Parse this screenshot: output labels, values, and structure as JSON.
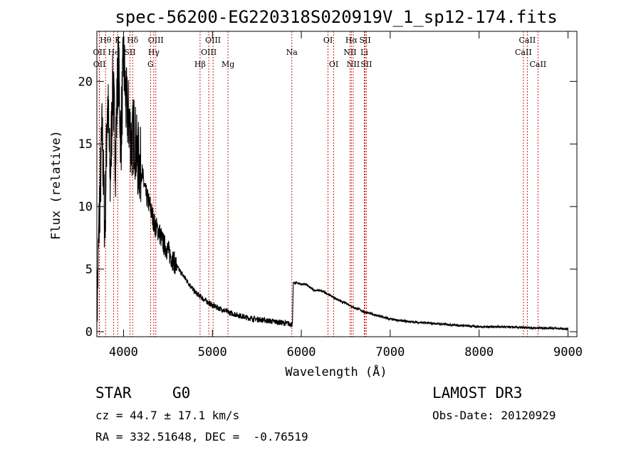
{
  "chart_data": {
    "type": "line",
    "title": "spec-56200-EG220318S020919V_1_sp12-174.fits",
    "xlabel": "Wavelength (Å)",
    "ylabel": "Flux (relative)",
    "xlim": [
      3700,
      9100
    ],
    "ylim": [
      -0.4,
      24
    ],
    "xticks": [
      4000,
      5000,
      6000,
      7000,
      8000,
      9000
    ],
    "yticks": [
      0,
      5,
      10,
      15,
      20
    ],
    "grid": false,
    "line_color": "#000000",
    "marker_color": "#cc0000",
    "series": [
      {
        "x": [
          3700,
          3730,
          3760,
          3790,
          3820,
          3850,
          3880,
          3910,
          3940,
          3970,
          4000,
          4030,
          4060,
          4090,
          4120,
          4150,
          4200,
          4250,
          4300,
          4350,
          4400,
          4450,
          4500,
          4550,
          4600,
          4700,
          4800,
          4900,
          5000,
          5100,
          5200,
          5300,
          5400,
          5500,
          5600,
          5700,
          5800,
          5900,
          5910,
          5920,
          5950,
          6000,
          6050,
          6100,
          6150,
          6200,
          6250,
          6300,
          6350,
          6400,
          6450,
          6500,
          6550,
          6600,
          6650,
          6700,
          6800,
          6900,
          7000,
          7200,
          7400,
          7600,
          7800,
          8000,
          8200,
          8400,
          8600,
          8800,
          9000
        ],
        "y": [
          1.0,
          10.0,
          16.0,
          8.0,
          19.0,
          12.0,
          20.0,
          14.0,
          22.0,
          15.0,
          22.0,
          18.0,
          17.0,
          15.0,
          16.0,
          14.0,
          13.0,
          11.0,
          10.0,
          8.5,
          8.0,
          7.0,
          6.5,
          5.8,
          5.2,
          4.2,
          3.2,
          2.6,
          2.1,
          1.8,
          1.5,
          1.3,
          1.1,
          1.0,
          0.9,
          0.8,
          0.7,
          0.6,
          3.9,
          3.9,
          3.9,
          3.8,
          3.8,
          3.5,
          3.3,
          3.3,
          3.2,
          3.0,
          2.8,
          2.6,
          2.4,
          2.3,
          2.1,
          1.9,
          1.8,
          1.6,
          1.4,
          1.2,
          1.0,
          0.8,
          0.7,
          0.6,
          0.5,
          0.4,
          0.4,
          0.35,
          0.3,
          0.3,
          0.2
        ]
      }
    ],
    "spectral_lines": [
      {
        "label": "Hθ",
        "wavelength": 3798,
        "row": 0
      },
      {
        "label": "K",
        "wavelength": 3934,
        "row": 0
      },
      {
        "label": "Hδ",
        "wavelength": 4102,
        "row": 0
      },
      {
        "label": "OIII",
        "wavelength": 4363,
        "row": 0
      },
      {
        "label": "OIII",
        "wavelength": 5007,
        "row": 0
      },
      {
        "label": "OI",
        "wavelength": 6300,
        "row": 0
      },
      {
        "label": "Hα",
        "wavelength": 6563,
        "row": 0
      },
      {
        "label": "SII",
        "wavelength": 6717,
        "row": 0
      },
      {
        "label": "CaII",
        "wavelength": 8542,
        "row": 0
      },
      {
        "label": "OII",
        "wavelength": 3727,
        "row": 1
      },
      {
        "label": "He",
        "wavelength": 3889,
        "row": 1
      },
      {
        "label": "SII",
        "wavelength": 4072,
        "row": 1
      },
      {
        "label": "Hγ",
        "wavelength": 4340,
        "row": 1
      },
      {
        "label": "OIII",
        "wavelength": 4959,
        "row": 1
      },
      {
        "label": "Na",
        "wavelength": 5893,
        "row": 1
      },
      {
        "label": "NII",
        "wavelength": 6548,
        "row": 1
      },
      {
        "label": "Li",
        "wavelength": 6708,
        "row": 1
      },
      {
        "label": "CaII",
        "wavelength": 8498,
        "row": 1
      },
      {
        "label": "OII",
        "wavelength": 3729,
        "row": 2
      },
      {
        "label": "G",
        "wavelength": 4304,
        "row": 2
      },
      {
        "label": "Hβ",
        "wavelength": 4861,
        "row": 2
      },
      {
        "label": "Mg",
        "wavelength": 5175,
        "row": 2
      },
      {
        "label": "OI",
        "wavelength": 6364,
        "row": 2
      },
      {
        "label": "NII",
        "wavelength": 6584,
        "row": 2
      },
      {
        "label": "SII",
        "wavelength": 6731,
        "row": 2
      },
      {
        "label": "CaII",
        "wavelength": 8662,
        "row": 2
      }
    ]
  },
  "info": {
    "class": "STAR",
    "subclass": "G0",
    "survey": "LAMOST DR3",
    "redshift": "cz = 44.7 ± 17.1 km/s",
    "obs_date": "Obs-Date: 20120929",
    "coords": "RA = 332.51648, DEC =  -0.76519"
  }
}
